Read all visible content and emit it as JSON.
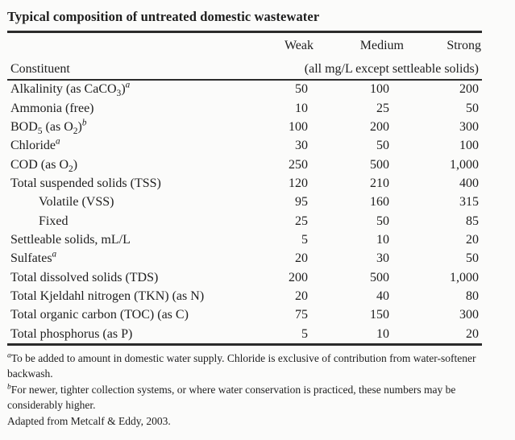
{
  "title": "Typical composition of untreated domestic wastewater",
  "table": {
    "header": {
      "constituent": "Constituent",
      "cols": [
        "Weak",
        "Medium",
        "Strong"
      ],
      "units_note": "(all mg/L except settleable solids)"
    },
    "rows": [
      {
        "label": [
          {
            "t": "Alkalinity (as CaCO"
          },
          {
            "t": "3",
            "s": "sub"
          },
          {
            "t": ")"
          },
          {
            "t": "a",
            "s": "sup"
          }
        ],
        "indent": false,
        "weak": "50",
        "medium": "100",
        "strong": "200"
      },
      {
        "label": [
          {
            "t": "Ammonia (free)"
          }
        ],
        "indent": false,
        "weak": "10",
        "medium": "25",
        "strong": "50"
      },
      {
        "label": [
          {
            "t": "BOD"
          },
          {
            "t": "5",
            "s": "sub"
          },
          {
            "t": " (as O"
          },
          {
            "t": "2",
            "s": "sub"
          },
          {
            "t": ")"
          },
          {
            "t": "b",
            "s": "sup"
          }
        ],
        "indent": false,
        "weak": "100",
        "medium": "200",
        "strong": "300"
      },
      {
        "label": [
          {
            "t": "Chloride"
          },
          {
            "t": "a",
            "s": "sup"
          }
        ],
        "indent": false,
        "weak": "30",
        "medium": "50",
        "strong": "100"
      },
      {
        "label": [
          {
            "t": "COD (as O"
          },
          {
            "t": "2",
            "s": "sub"
          },
          {
            "t": ")"
          }
        ],
        "indent": false,
        "weak": "250",
        "medium": "500",
        "strong": "1,000"
      },
      {
        "label": [
          {
            "t": "Total suspended solids (TSS)"
          }
        ],
        "indent": false,
        "weak": "120",
        "medium": "210",
        "strong": "400"
      },
      {
        "label": [
          {
            "t": "Volatile (VSS)"
          }
        ],
        "indent": true,
        "weak": "95",
        "medium": "160",
        "strong": "315"
      },
      {
        "label": [
          {
            "t": "Fixed"
          }
        ],
        "indent": true,
        "weak": "25",
        "medium": "50",
        "strong": "85"
      },
      {
        "label": [
          {
            "t": "Settleable solids, mL/L"
          }
        ],
        "indent": false,
        "weak": "5",
        "medium": "10",
        "strong": "20"
      },
      {
        "label": [
          {
            "t": "Sulfates"
          },
          {
            "t": "a",
            "s": "sup"
          }
        ],
        "indent": false,
        "weak": "20",
        "medium": "30",
        "strong": "50"
      },
      {
        "label": [
          {
            "t": "Total dissolved solids (TDS)"
          }
        ],
        "indent": false,
        "weak": "200",
        "medium": "500",
        "strong": "1,000"
      },
      {
        "label": [
          {
            "t": "Total Kjeldahl nitrogen (TKN) (as N)"
          }
        ],
        "indent": false,
        "weak": "20",
        "medium": "40",
        "strong": "80"
      },
      {
        "label": [
          {
            "t": "Total organic carbon (TOC) (as C)"
          }
        ],
        "indent": false,
        "weak": "75",
        "medium": "150",
        "strong": "300"
      },
      {
        "label": [
          {
            "t": "Total phosphorus (as P)"
          }
        ],
        "indent": false,
        "weak": "5",
        "medium": "10",
        "strong": "20"
      }
    ]
  },
  "footnotes": [
    {
      "parts": [
        {
          "t": "a",
          "s": "sup"
        },
        {
          "t": "To be added to amount in domestic water supply. Chloride is exclusive of contribution from water-softener backwash."
        }
      ]
    },
    {
      "parts": [
        {
          "t": "b",
          "s": "sup"
        },
        {
          "t": "For newer, tighter collection systems, or where water conservation is practiced, these numbers may be considerably higher."
        }
      ]
    },
    {
      "parts": [
        {
          "t": "Adapted from Metcalf & Eddy, 2003."
        }
      ]
    }
  ],
  "colors": {
    "background": "#fbfbfa",
    "text": "#1e1e1e",
    "rule": "#2b2b2b"
  }
}
